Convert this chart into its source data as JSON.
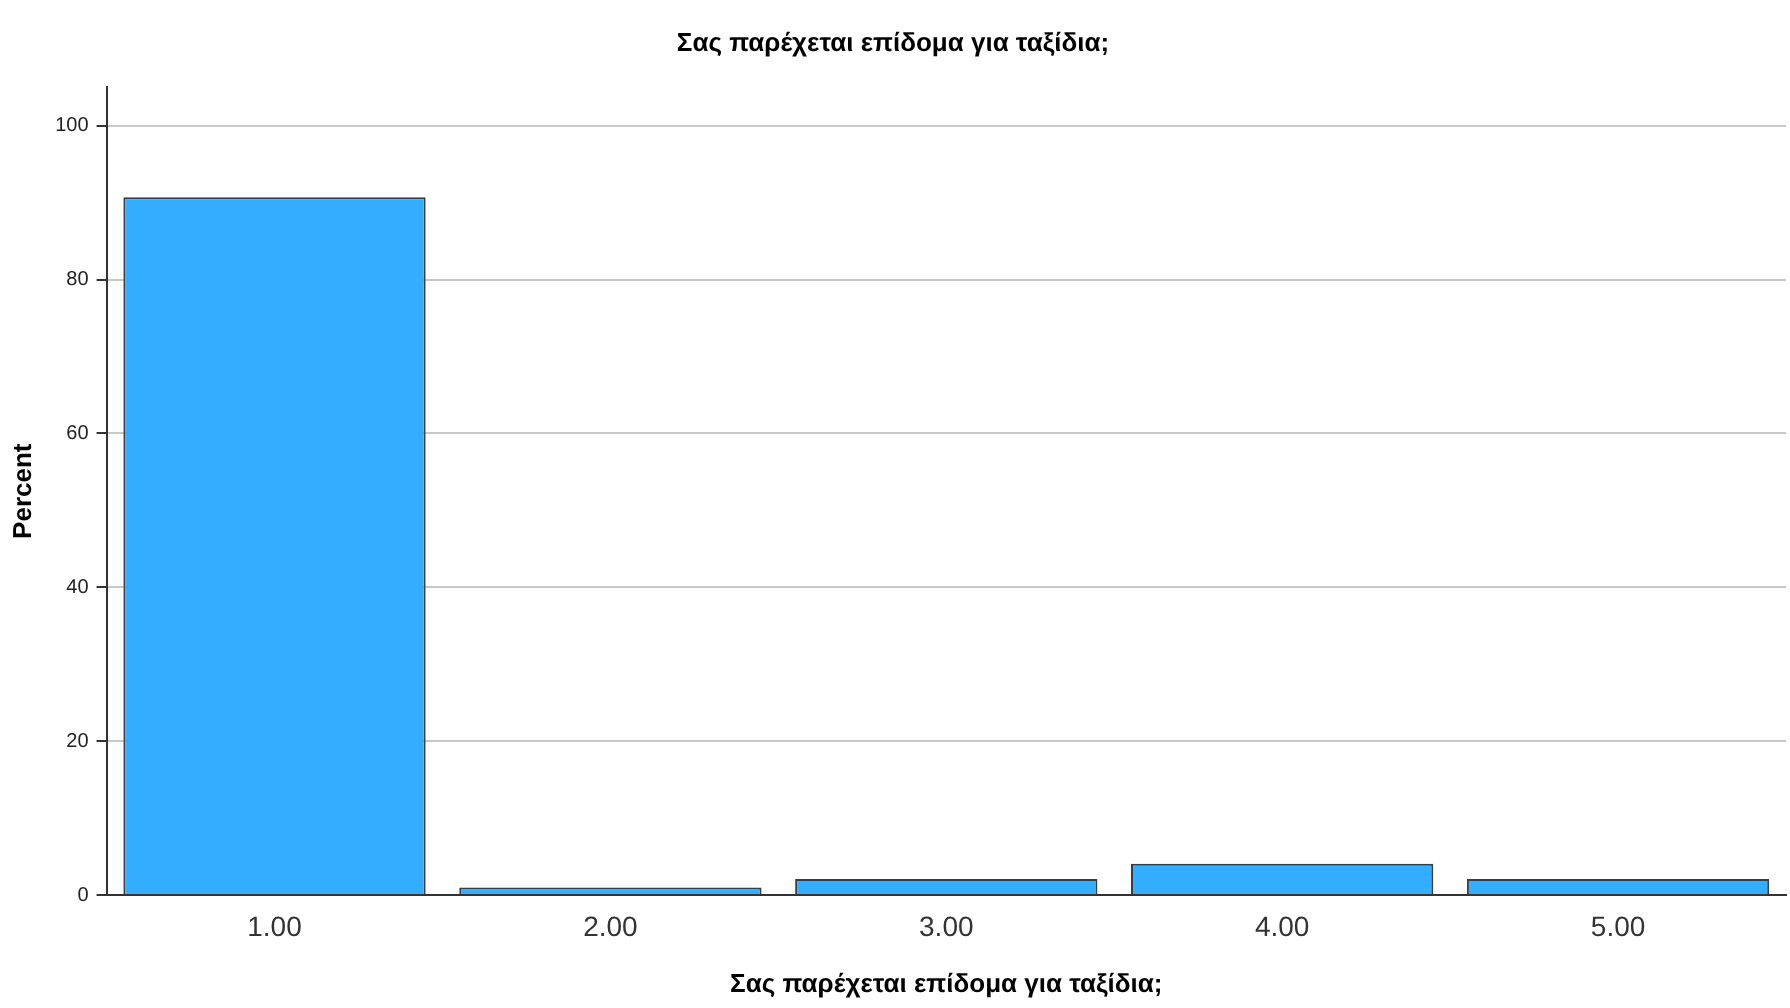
{
  "chart_data": {
    "type": "bar",
    "title": "Σας παρέχεται επίδομα για ταξίδια;",
    "xlabel": "Σας παρέχεται επίδομα για ταξίδια;",
    "ylabel": "Percent",
    "categories": [
      "1.00",
      "2.00",
      "3.00",
      "4.00",
      "5.00"
    ],
    "values": [
      90.7,
      1.0,
      2.1,
      4.1,
      2.1
    ],
    "color": "#33adff",
    "ylim": [
      0,
      105
    ],
    "yticks": [
      0,
      20,
      40,
      60,
      80,
      100
    ],
    "grid": "y"
  }
}
